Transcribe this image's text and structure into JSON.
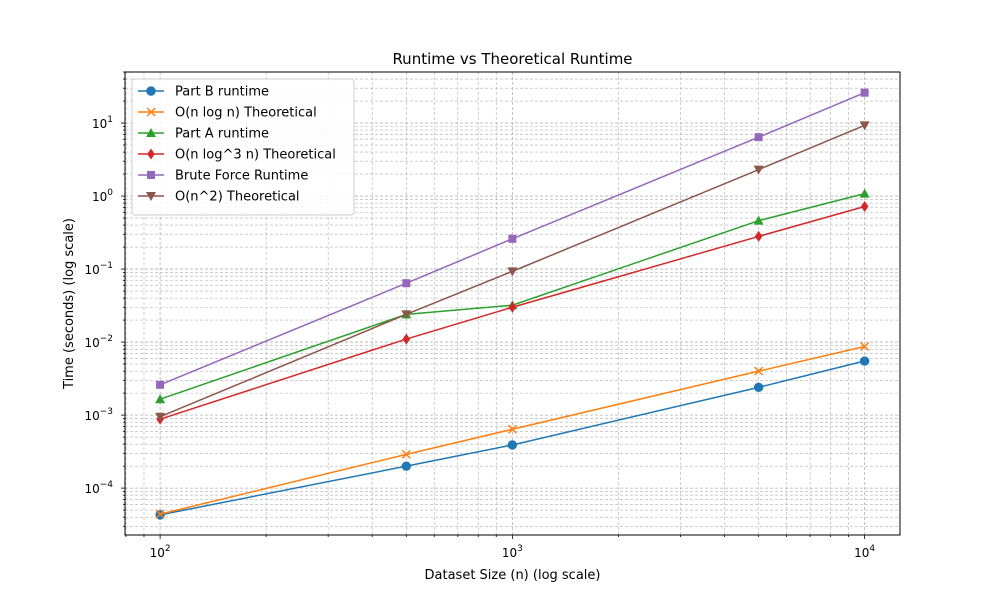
{
  "chart_data": {
    "type": "line",
    "title": "Runtime vs Theoretical Runtime",
    "xlabel": "Dataset Size (n) (log scale)",
    "ylabel": "Time (seconds) (log scale)",
    "xscale": "log",
    "yscale": "log",
    "xlim": [
      79.5,
      12600
    ],
    "ylim": [
      2.28e-05,
      50
    ],
    "grid": true,
    "legend_position": "top-left",
    "x": [
      100,
      500,
      1000,
      5000,
      10000
    ],
    "x_tick_labels": [
      {
        "base": "10",
        "exp": "2",
        "value": 100
      },
      {
        "base": "10",
        "exp": "3",
        "value": 1000
      },
      {
        "base": "10",
        "exp": "4",
        "value": 10000
      }
    ],
    "y_tick_labels": [
      {
        "base": "10",
        "exp": "−4",
        "value": 0.0001
      },
      {
        "base": "10",
        "exp": "−3",
        "value": 0.001
      },
      {
        "base": "10",
        "exp": "−2",
        "value": 0.01
      },
      {
        "base": "10",
        "exp": "−1",
        "value": 0.1
      },
      {
        "base": "10",
        "exp": "0",
        "value": 1
      },
      {
        "base": "10",
        "exp": "1",
        "value": 10
      }
    ],
    "series": [
      {
        "name": "Part B runtime",
        "color": "#1f77b4",
        "marker": "circle",
        "values": [
          4.3e-05,
          0.0002,
          0.00039,
          0.0024,
          0.0055
        ]
      },
      {
        "name": "O(n log n) Theoretical",
        "color": "#ff7f0e",
        "marker": "x",
        "values": [
          4.4e-05,
          0.00029,
          0.00064,
          0.004,
          0.0087
        ]
      },
      {
        "name": "Part A runtime",
        "color": "#2ca02c",
        "marker": "triangle-up",
        "values": [
          0.00165,
          0.024,
          0.032,
          0.46,
          1.08
        ]
      },
      {
        "name": "O(n log^3 n) Theoretical",
        "color": "#d62728",
        "marker": "diamond",
        "values": [
          0.00088,
          0.011,
          0.03,
          0.28,
          0.72
        ]
      },
      {
        "name": "Brute Force Runtime",
        "color": "#9467bd",
        "marker": "square",
        "values": [
          0.0026,
          0.064,
          0.26,
          6.4,
          26
        ]
      },
      {
        "name": "O(n^2) Theoretical",
        "color": "#8c564b",
        "marker": "triangle-down",
        "values": [
          0.00095,
          0.024,
          0.093,
          2.3,
          9.3
        ]
      }
    ]
  }
}
